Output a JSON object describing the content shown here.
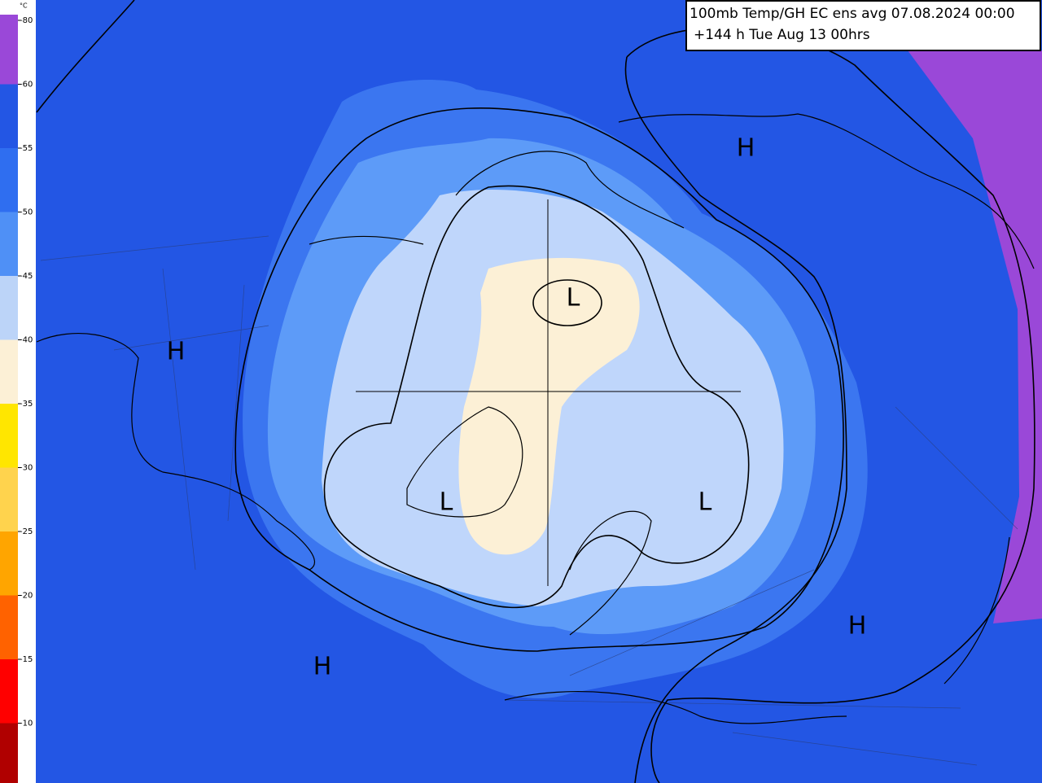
{
  "title": {
    "line1": "100mb Temp/GH  EC ens avg 07.08.2024 00:00",
    "line2": "+144 h Tue Aug 13 00hrs"
  },
  "legend": {
    "unit": "°C",
    "labels": [
      "-80",
      "-60",
      "-55",
      "-50",
      "-45",
      "-40",
      "-35",
      "-30",
      "-25",
      "-20",
      "-15",
      "-10"
    ],
    "colors": [
      "#9a48d8",
      "#2356e4",
      "#2f6ef0",
      "#4f90f6",
      "#bcd4f8",
      "#fcf0d6",
      "#ffe600",
      "#ffd34d",
      "#ffa500",
      "#ff6200",
      "#ff0000",
      "#b00000"
    ]
  },
  "pressure_centers": [
    "H",
    "H",
    "H",
    "H",
    "L",
    "L",
    "L"
  ]
}
